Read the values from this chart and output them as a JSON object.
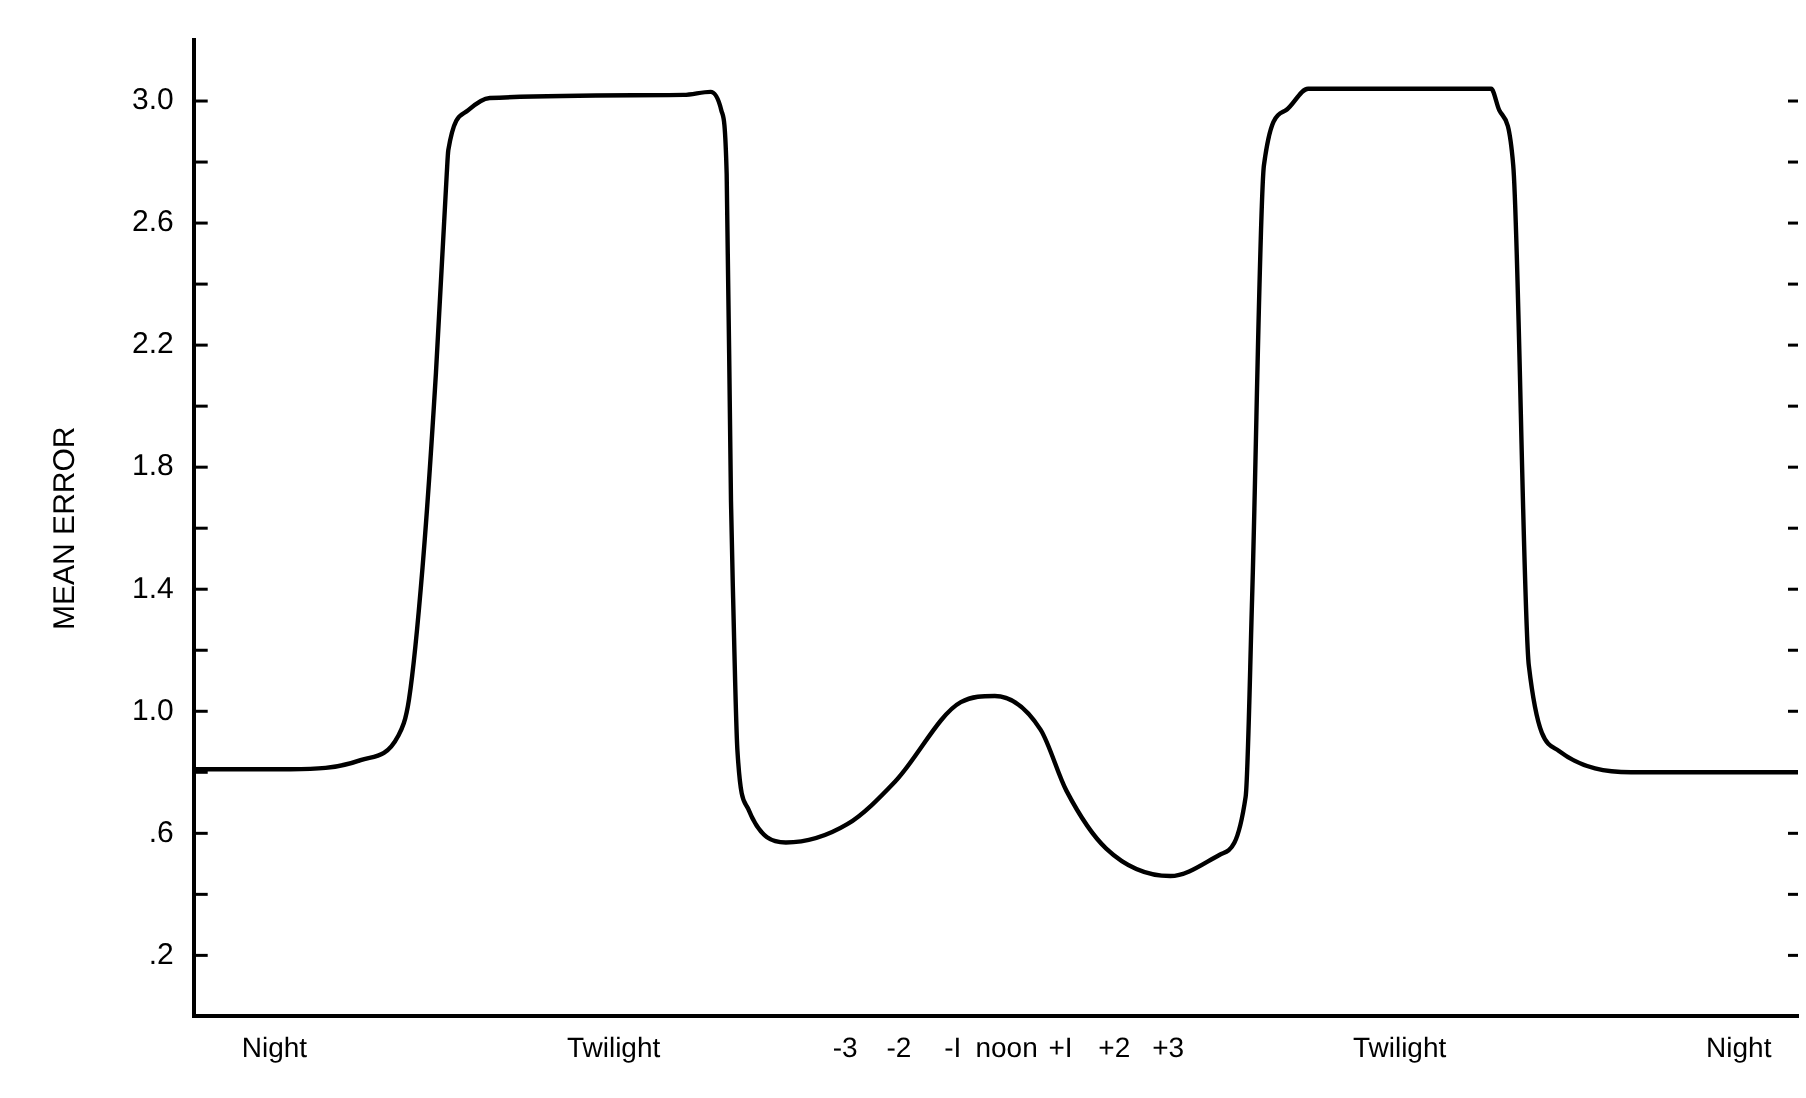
{
  "chart_data": {
    "type": "line",
    "ylabel": "MEAN ERROR",
    "xlim": [
      -15.1,
      14.7
    ],
    "ylim": [
      0,
      3.2
    ],
    "xticks": [
      {
        "value": -13.6,
        "label": "Night"
      },
      {
        "value": -7.3,
        "label": "Twilight"
      },
      -3,
      -2,
      {
        "value": -1,
        "label": "-I"
      },
      {
        "value": 0,
        "label": "noon"
      },
      {
        "value": 1,
        "label": "+I"
      },
      {
        "value": 2,
        "label": "+2"
      },
      {
        "value": 3,
        "label": "+3"
      },
      {
        "value": 7.3,
        "label": "Twilight"
      },
      {
        "value": 13.6,
        "label": "Night"
      }
    ],
    "yticks": [
      {
        "value": 0.2,
        "label": ".2"
      },
      {
        "value": 0.4,
        "label": null
      },
      {
        "value": 0.6,
        "label": ".6"
      },
      {
        "value": 0.8,
        "label": null
      },
      {
        "value": 1.0,
        "label": "1.0"
      },
      {
        "value": 1.2,
        "label": null
      },
      {
        "value": 1.4,
        "label": "1.4"
      },
      {
        "value": 1.6,
        "label": null
      },
      {
        "value": 1.8,
        "label": "1.8"
      },
      {
        "value": 2.0,
        "label": null
      },
      {
        "value": 2.2,
        "label": "2.2"
      },
      {
        "value": 2.4,
        "label": null
      },
      {
        "value": 2.6,
        "label": "2.6"
      },
      {
        "value": 2.8,
        "label": null
      },
      {
        "value": 3.0,
        "label": "3.0"
      }
    ],
    "grid": false,
    "legend": false,
    "marker": "none",
    "line_style": "solid",
    "series": [
      {
        "color": "#000000",
        "x": [
          -15.1,
          -13.3,
          -12.0,
          -11.3,
          -11.1,
          -10.85,
          -10.6,
          -10.4,
          -10.37,
          -10.0,
          -9.6,
          -6.0,
          -5.5,
          -5.3,
          -5.2,
          -5.12,
          -5.08,
          -5.0,
          -4.8,
          -4.1,
          -2.96,
          -2.07,
          -0.85,
          -0.22,
          0.63,
          1.11,
          1.85,
          3.04,
          3.96,
          4.44,
          4.56,
          4.78,
          5.19,
          5.6,
          9.0,
          9.15,
          9.41,
          9.7,
          10.26,
          11.6,
          14.7
        ],
        "values": [
          0.81,
          0.81,
          0.84,
          0.92,
          1.04,
          1.47,
          2.11,
          2.76,
          2.84,
          2.97,
          3.01,
          3.02,
          3.03,
          2.97,
          2.76,
          1.69,
          1.37,
          0.87,
          0.68,
          0.57,
          0.63,
          0.77,
          1.03,
          1.05,
          0.94,
          0.74,
          0.55,
          0.46,
          0.53,
          0.72,
          1.37,
          2.79,
          2.97,
          3.04,
          3.04,
          2.97,
          2.79,
          1.15,
          0.87,
          0.8,
          0.8
        ]
      }
    ]
  }
}
